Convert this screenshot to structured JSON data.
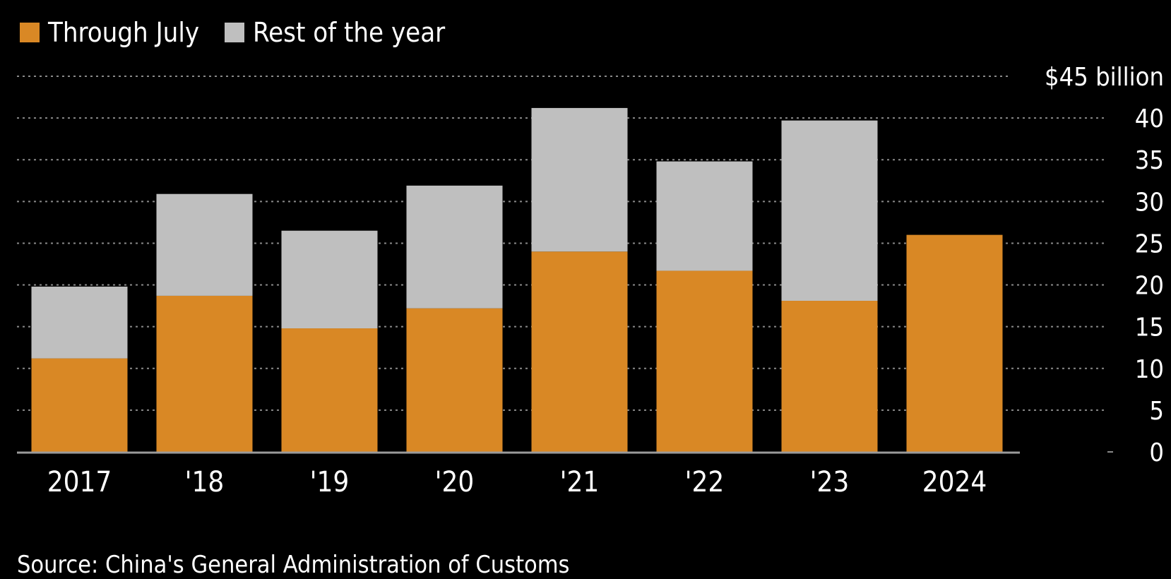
{
  "legend": {
    "items": [
      {
        "label": "Through July",
        "color": "#d98825"
      },
      {
        "label": "Rest of the year",
        "color": "#bfbfbf"
      }
    ]
  },
  "source": "Source: China's General Administration of Customs",
  "chart_data": {
    "type": "bar",
    "stacked": true,
    "categories": [
      "2017",
      "'18",
      "'19",
      "'20",
      "'21",
      "'22",
      "'23",
      "2024"
    ],
    "series": [
      {
        "name": "Through July",
        "color": "#d98825",
        "values": [
          11.2,
          18.7,
          14.8,
          17.2,
          24.0,
          21.7,
          18.1,
          26.0
        ]
      },
      {
        "name": "Rest of the year",
        "color": "#bfbfbf",
        "values": [
          8.6,
          12.2,
          11.7,
          14.7,
          17.2,
          13.1,
          21.6,
          0
        ]
      }
    ],
    "ylim": [
      0,
      45
    ],
    "yticks": [
      0,
      5,
      10,
      15,
      20,
      25,
      30,
      35,
      40,
      45
    ],
    "ytick_labels": [
      "0",
      "5",
      "10",
      "15",
      "20",
      "25",
      "30",
      "35",
      "40",
      "$45 billion"
    ],
    "y_axis_position": "right",
    "grid": true,
    "legend_position": "top-left"
  }
}
